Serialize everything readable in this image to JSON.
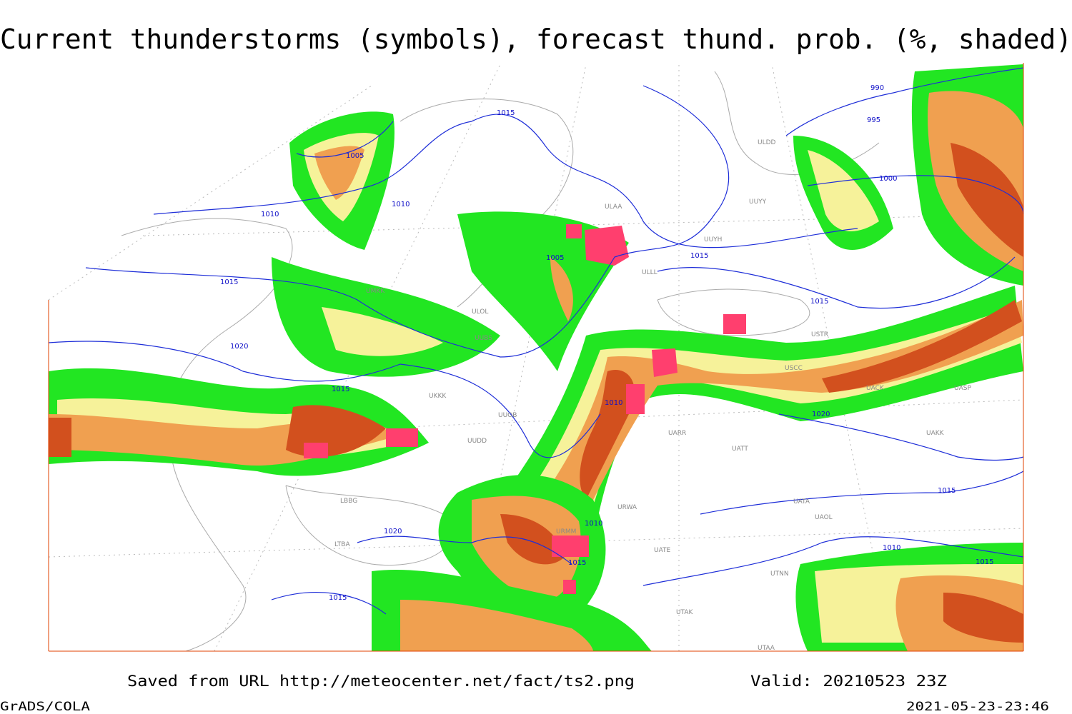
{
  "header": {
    "title": "Current thunderstorms (symbols), forecast thund. prob. (%, shaded)"
  },
  "isobar_labels": [
    "1005",
    "1010",
    "1015",
    "1020",
    "1015",
    "1010",
    "1015",
    "1010",
    "1015",
    "1005",
    "995",
    "990",
    "1000",
    "1015",
    "1020",
    "1015",
    "1010",
    "1015",
    "1020",
    "1010",
    "1015",
    "1015"
  ],
  "stations": [
    "UMKK",
    "ULOL",
    "UUBS",
    "UKKK",
    "UUOB",
    "UUDD",
    "UARR",
    "UATT",
    "USTR",
    "USCC",
    "UACK",
    "UASP",
    "UAKK",
    "UATA",
    "UAOL",
    "URWA",
    "UATE",
    "UTAK",
    "UTAA",
    "UTNN",
    "ULLL",
    "UUYY",
    "ULDD",
    "UUYH",
    "ULAA",
    "URMM",
    "LBBG",
    "LTBA"
  ],
  "footer": {
    "source": "Saved from URL http://meteocenter.net/fact/ts2.png",
    "valid": "Valid: 20210523 23Z",
    "credit": "GrADS/COLA",
    "timestamp": "2021-05-23-23:46"
  }
}
